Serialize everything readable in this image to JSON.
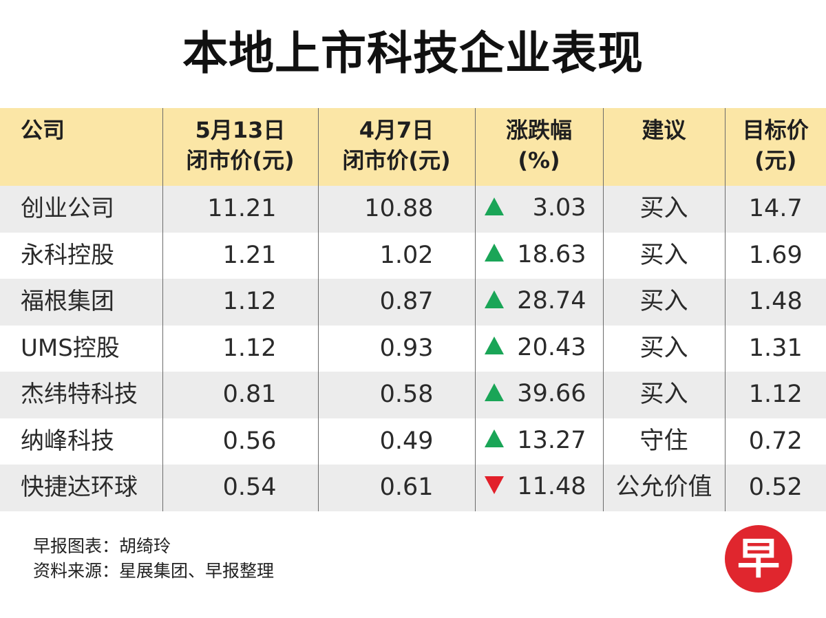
{
  "title": "本地上市科技企业表现",
  "colors": {
    "header_bg": "#fbe6a6",
    "row_alt_bg": "#ececec",
    "up": "#1aa557",
    "down": "#e2202a",
    "logo_red": "#e0262e"
  },
  "chart_data": {
    "type": "table",
    "title": "本地上市科技企业表现",
    "columns": [
      {
        "line1": "公司",
        "line2": ""
      },
      {
        "line1": "5月13日",
        "line2": "闭市价(元)"
      },
      {
        "line1": "4月7日",
        "line2": "闭市价(元)"
      },
      {
        "line1": "涨跌幅",
        "line2": "(%)"
      },
      {
        "line1": "建议",
        "line2": ""
      },
      {
        "line1": "目标价",
        "line2": "(元)"
      }
    ],
    "rows": [
      {
        "company": "创业公司",
        "close_may13": "11.21",
        "close_apr7": "10.88",
        "direction": "up",
        "change_pct": "3.03",
        "recommendation": "买入",
        "target": "14.7"
      },
      {
        "company": "永科控股",
        "close_may13": "1.21",
        "close_apr7": "1.02",
        "direction": "up",
        "change_pct": "18.63",
        "recommendation": "买入",
        "target": "1.69"
      },
      {
        "company": "福根集团",
        "close_may13": "1.12",
        "close_apr7": "0.87",
        "direction": "up",
        "change_pct": "28.74",
        "recommendation": "买入",
        "target": "1.48"
      },
      {
        "company": "UMS控股",
        "close_may13": "1.12",
        "close_apr7": "0.93",
        "direction": "up",
        "change_pct": "20.43",
        "recommendation": "买入",
        "target": "1.31"
      },
      {
        "company": "杰纬特科技",
        "close_may13": "0.81",
        "close_apr7": "0.58",
        "direction": "up",
        "change_pct": "39.66",
        "recommendation": "买入",
        "target": "1.12"
      },
      {
        "company": "纳峰科技",
        "close_may13": "0.56",
        "close_apr7": "0.49",
        "direction": "up",
        "change_pct": "13.27",
        "recommendation": "守住",
        "target": "0.72"
      },
      {
        "company": "快捷达环球",
        "close_may13": "0.54",
        "close_apr7": "0.61",
        "direction": "down",
        "change_pct": "11.48",
        "recommendation": "公允价值",
        "target": "0.52"
      }
    ]
  },
  "footer": {
    "credit": "早报图表：胡绮玲",
    "source": "资料来源：星展集团、早报整理"
  },
  "logo": {
    "icon": "zaobao-logo-icon",
    "glyph": "早"
  }
}
